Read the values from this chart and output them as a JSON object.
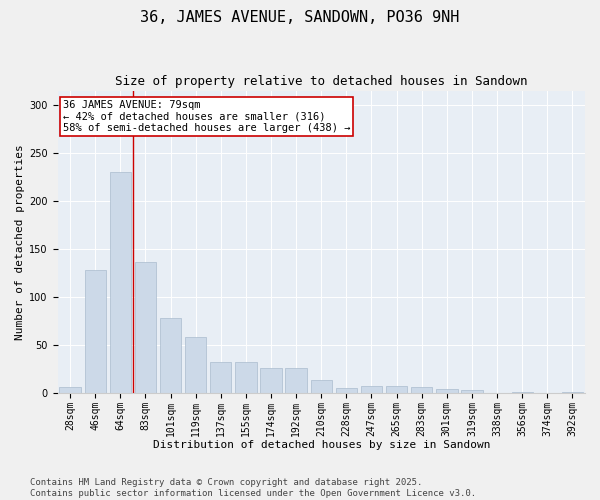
{
  "title1": "36, JAMES AVENUE, SANDOWN, PO36 9NH",
  "title2": "Size of property relative to detached houses in Sandown",
  "xlabel": "Distribution of detached houses by size in Sandown",
  "ylabel": "Number of detached properties",
  "categories": [
    "28sqm",
    "46sqm",
    "64sqm",
    "83sqm",
    "101sqm",
    "119sqm",
    "137sqm",
    "155sqm",
    "174sqm",
    "192sqm",
    "210sqm",
    "228sqm",
    "247sqm",
    "265sqm",
    "283sqm",
    "301sqm",
    "319sqm",
    "338sqm",
    "356sqm",
    "374sqm",
    "392sqm"
  ],
  "values": [
    6,
    128,
    230,
    136,
    78,
    58,
    32,
    32,
    26,
    26,
    13,
    5,
    7,
    7,
    6,
    4,
    3,
    0,
    1,
    0,
    1
  ],
  "bar_color": "#ccd9e8",
  "bar_edge_color": "#aabcce",
  "vline_x": 2.5,
  "vline_color": "#cc0000",
  "annotation_line1": "36 JAMES AVENUE: 79sqm",
  "annotation_line2": "← 42% of detached houses are smaller (316)",
  "annotation_line3": "58% of semi-detached houses are larger (438) →",
  "annotation_box_color": "#ffffff",
  "annotation_box_edge": "#cc0000",
  "ylim": [
    0,
    315
  ],
  "yticks": [
    0,
    50,
    100,
    150,
    200,
    250,
    300
  ],
  "background_color": "#e8eef5",
  "fig_background": "#f0f0f0",
  "footer": "Contains HM Land Registry data © Crown copyright and database right 2025.\nContains public sector information licensed under the Open Government Licence v3.0.",
  "title_fontsize": 11,
  "subtitle_fontsize": 9,
  "axis_label_fontsize": 8,
  "tick_fontsize": 7,
  "annotation_fontsize": 7.5,
  "footer_fontsize": 6.5
}
